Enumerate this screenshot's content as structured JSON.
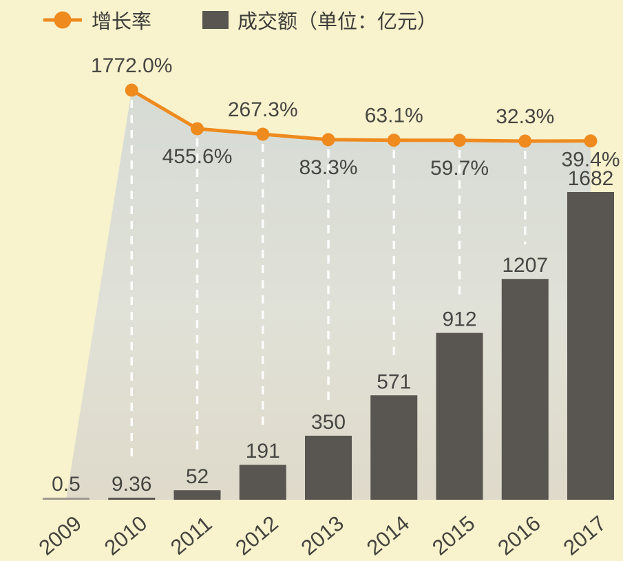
{
  "legend": {
    "growth_rate_label": "增长率",
    "volume_label": "成交额（单位：亿元）"
  },
  "colors": {
    "background": "#f8f2cd",
    "accent_orange": "#ee8a1e",
    "bar": "#595550",
    "bar_2009": "#9d9890",
    "label_text": "#474643",
    "area_top": "#d6dbd5",
    "area_mid": "#e0e1d7",
    "area_bottom": "#dfdaca",
    "dash": "#ffffff"
  },
  "chart_data": {
    "type": "bar",
    "subtype": "bar-with-line-overlay",
    "categories": [
      "2009",
      "2010",
      "2011",
      "2012",
      "2013",
      "2014",
      "2015",
      "2016",
      "2017"
    ],
    "series": [
      {
        "name": "成交额",
        "type": "bar",
        "unit": "亿元",
        "values": [
          0.5,
          9.36,
          52,
          191,
          350,
          571,
          912,
          1207,
          1682
        ],
        "labels": [
          "0.5",
          "9.36",
          "52",
          "191",
          "350",
          "571",
          "912",
          "1207",
          "1682"
        ]
      },
      {
        "name": "增长率",
        "type": "line",
        "unit": "%",
        "values": [
          null,
          1772.0,
          455.6,
          267.3,
          83.3,
          63.1,
          59.7,
          32.3,
          39.4
        ],
        "labels": [
          "",
          "1772.0%",
          "455.6%",
          "267.3%",
          "83.3%",
          "63.1%",
          "59.7%",
          "32.3%",
          "39.4%"
        ]
      }
    ],
    "title": "",
    "xlabel": "",
    "ylabel": "",
    "bar_axis_range": [
      0,
      1682
    ],
    "line_axis_range": [
      0,
      1772
    ],
    "grid": false,
    "legend_position": "top-left",
    "annotations": "value labels above each bar; percent labels alternate above/below line points; white dashed connectors from line points down to bar tops"
  }
}
